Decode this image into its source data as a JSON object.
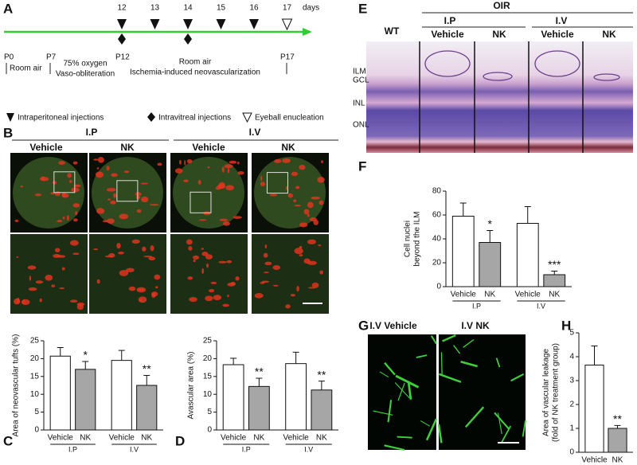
{
  "panel_a": {
    "label": "A",
    "days": [
      12,
      13,
      14,
      15,
      16,
      17
    ],
    "days_unit": "days",
    "intraperitoneal_days": [
      12,
      13,
      14,
      15,
      16
    ],
    "intravitreal_days": [
      12,
      14
    ],
    "enucleation_day": 17,
    "points": [
      "P0",
      "P7",
      "P12",
      "P17"
    ],
    "phases": [
      [
        "Room air"
      ],
      [
        "75% oxygen",
        "Vaso-obliteration"
      ],
      [
        "Room air",
        "Ischemia-induced neovascularization"
      ]
    ],
    "legend": [
      "Intraperitoneal injections",
      "Intravitreal injections",
      "Eyeball enucleation"
    ]
  },
  "panel_b": {
    "label": "B",
    "groups": [
      "I.P",
      "I.V"
    ],
    "columns": [
      "Vehicle",
      "NK",
      "Vehicle",
      "NK"
    ]
  },
  "panel_e": {
    "label": "E",
    "control": "WT",
    "model": "OIR",
    "groups": [
      "I.P",
      "I.V"
    ],
    "columns": [
      "Vehicle",
      "NK",
      "Vehicle",
      "NK"
    ],
    "layers": [
      "ILM",
      "GCL",
      "INL",
      "ONL"
    ]
  },
  "panel_g": {
    "label": "G",
    "titles": [
      "I.V Vehicle",
      "I.V NK"
    ]
  },
  "chart_data": [
    {
      "type": "bar",
      "panel": "C",
      "ylabel": [
        "Area of neovascular tufts (%)"
      ],
      "categories": [
        "Vehicle",
        "NK",
        "Vehicle",
        "NK"
      ],
      "groups": [
        "I.P",
        "I.V"
      ],
      "values": [
        20.7,
        17.0,
        19.5,
        12.5
      ],
      "errors": [
        2.4,
        2.2,
        2.8,
        2.8
      ],
      "significance": [
        null,
        "*",
        null,
        "**"
      ],
      "colors": [
        "#ffffff",
        "#a6a6a6",
        "#ffffff",
        "#a6a6a6"
      ],
      "ylim": [
        0,
        25
      ],
      "yticks": [
        0,
        5,
        10,
        15,
        20,
        25
      ]
    },
    {
      "type": "bar",
      "panel": "D",
      "ylabel": [
        "Avascular area (%)"
      ],
      "categories": [
        "Vehicle",
        "NK",
        "Vehicle",
        "NK"
      ],
      "groups": [
        "I.P",
        "I.V"
      ],
      "values": [
        18.3,
        12.2,
        18.6,
        11.2
      ],
      "errors": [
        1.8,
        2.3,
        3.2,
        2.5
      ],
      "significance": [
        null,
        "**",
        null,
        "**"
      ],
      "colors": [
        "#ffffff",
        "#a6a6a6",
        "#ffffff",
        "#a6a6a6"
      ],
      "ylim": [
        0,
        25
      ],
      "yticks": [
        0,
        5,
        10,
        15,
        20,
        25
      ]
    },
    {
      "type": "bar",
      "panel": "F",
      "ylabel": [
        "Cell nuclei",
        "beyond the ILM"
      ],
      "categories": [
        "Vehicle",
        "NK",
        "Vehicle",
        "NK"
      ],
      "groups": [
        "I.P",
        "I.V"
      ],
      "values": [
        59,
        37,
        53,
        10
      ],
      "errors": [
        11,
        10,
        14,
        3
      ],
      "significance": [
        null,
        "*",
        null,
        "***"
      ],
      "colors": [
        "#ffffff",
        "#a6a6a6",
        "#ffffff",
        "#a6a6a6"
      ],
      "ylim": [
        0,
        80
      ],
      "yticks": [
        0,
        20,
        40,
        60,
        80
      ]
    },
    {
      "type": "bar",
      "panel": "H",
      "ylabel": [
        "Area of vascular leakage",
        "(fold of NK treatment group)"
      ],
      "categories": [
        "Vehicle",
        "NK"
      ],
      "values": [
        3.65,
        1.0
      ],
      "errors": [
        0.8,
        0.12
      ],
      "significance": [
        null,
        "**"
      ],
      "colors": [
        "#ffffff",
        "#a6a6a6"
      ],
      "ylim": [
        0,
        5
      ],
      "yticks": [
        0,
        1,
        2,
        3,
        4,
        5
      ]
    }
  ]
}
